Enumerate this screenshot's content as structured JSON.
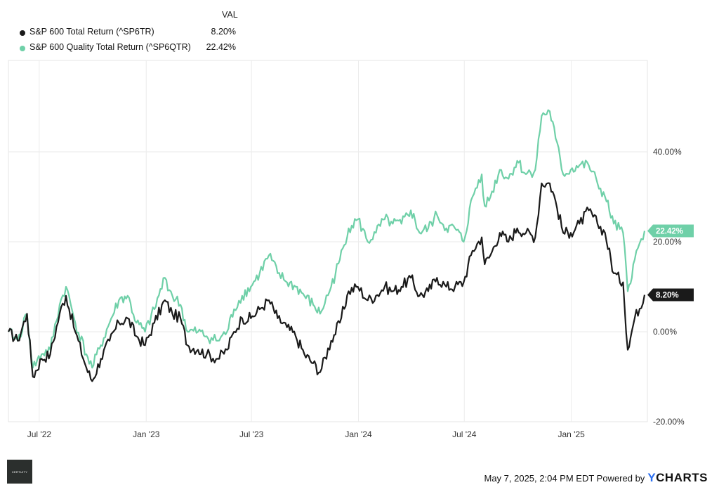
{
  "legend": {
    "header": "VAL",
    "items": [
      {
        "name": "S&P 600 Total Return (^SP6TR)",
        "value": "8.20%",
        "color": "#1a1a1a"
      },
      {
        "name": "S&P 600 Quality Total Return (^SP6QTR)",
        "value": "22.42%",
        "color": "#6fd0a8"
      }
    ]
  },
  "footer": {
    "timestamp": "May 7, 2025, 2:04 PM EDT Powered by",
    "brand_y": "Y",
    "brand_rest": "CHARTS"
  },
  "logo": {
    "text": "CERTUITY"
  },
  "chart_data": {
    "type": "line",
    "x_ticks": [
      "Jul '22",
      "Jan '23",
      "Jul '23",
      "Jan '24",
      "Jul '24",
      "Jan '25"
    ],
    "y_ticks": [
      "40.00%",
      "20.00%",
      "0.00%",
      "-20.00%"
    ],
    "ylim": [
      -20,
      60
    ],
    "xlim": [
      "2022-05-09",
      "2025-05-07"
    ],
    "grid": true,
    "end_labels": [
      "8.20%",
      "22.42%"
    ],
    "series": [
      {
        "name": "S&P 600 Total Return (^SP6TR)",
        "color": "#1a1a1a",
        "points": [
          [
            "2022-05-09",
            0
          ],
          [
            "2022-05-25",
            -2
          ],
          [
            "2022-06-10",
            4
          ],
          [
            "2022-06-20",
            -10
          ],
          [
            "2022-07-05",
            -6
          ],
          [
            "2022-07-20",
            -5
          ],
          [
            "2022-08-05",
            4
          ],
          [
            "2022-08-16",
            8
          ],
          [
            "2022-09-01",
            0
          ],
          [
            "2022-09-20",
            -8
          ],
          [
            "2022-09-30",
            -11
          ],
          [
            "2022-10-15",
            -6
          ],
          [
            "2022-10-30",
            -2
          ],
          [
            "2022-11-15",
            2
          ],
          [
            "2022-11-30",
            3
          ],
          [
            "2022-12-15",
            -1
          ],
          [
            "2022-12-30",
            -3
          ],
          [
            "2023-01-15",
            2
          ],
          [
            "2023-02-02",
            7
          ],
          [
            "2023-02-15",
            4
          ],
          [
            "2023-03-01",
            3
          ],
          [
            "2023-03-13",
            -3
          ],
          [
            "2023-03-31",
            -4
          ],
          [
            "2023-04-15",
            -5
          ],
          [
            "2023-05-04",
            -6
          ],
          [
            "2023-05-20",
            -4
          ],
          [
            "2023-06-01",
            0
          ],
          [
            "2023-06-15",
            3
          ],
          [
            "2023-06-30",
            3
          ],
          [
            "2023-07-15",
            5
          ],
          [
            "2023-07-31",
            7
          ],
          [
            "2023-08-15",
            3
          ],
          [
            "2023-08-31",
            1
          ],
          [
            "2023-09-15",
            -1
          ],
          [
            "2023-09-30",
            -5
          ],
          [
            "2023-10-15",
            -7
          ],
          [
            "2023-10-27",
            -9
          ],
          [
            "2023-11-15",
            -2
          ],
          [
            "2023-11-30",
            2
          ],
          [
            "2023-12-15",
            9
          ],
          [
            "2023-12-31",
            10
          ],
          [
            "2024-01-17",
            7
          ],
          [
            "2024-01-31",
            8
          ],
          [
            "2024-02-15",
            10
          ],
          [
            "2024-02-29",
            9
          ],
          [
            "2024-03-15",
            10
          ],
          [
            "2024-03-31",
            12
          ],
          [
            "2024-04-15",
            8
          ],
          [
            "2024-04-30",
            9
          ],
          [
            "2024-05-15",
            12
          ],
          [
            "2024-05-31",
            10
          ],
          [
            "2024-06-15",
            10
          ],
          [
            "2024-06-30",
            11
          ],
          [
            "2024-07-15",
            18
          ],
          [
            "2024-07-31",
            21
          ],
          [
            "2024-08-05",
            15
          ],
          [
            "2024-08-15",
            17
          ],
          [
            "2024-08-31",
            22
          ],
          [
            "2024-09-15",
            20
          ],
          [
            "2024-09-30",
            23
          ],
          [
            "2024-10-15",
            22
          ],
          [
            "2024-10-31",
            21
          ],
          [
            "2024-11-11",
            33
          ],
          [
            "2024-11-25",
            33
          ],
          [
            "2024-12-05",
            29
          ],
          [
            "2024-12-18",
            22
          ],
          [
            "2024-12-31",
            22
          ],
          [
            "2025-01-15",
            24
          ],
          [
            "2025-01-31",
            27
          ],
          [
            "2025-02-15",
            24
          ],
          [
            "2025-02-28",
            22
          ],
          [
            "2025-03-15",
            13
          ],
          [
            "2025-03-31",
            11
          ],
          [
            "2025-04-08",
            -4
          ],
          [
            "2025-04-20",
            3
          ],
          [
            "2025-05-07",
            8.2
          ]
        ]
      },
      {
        "name": "S&P 600 Quality Total Return (^SP6QTR)",
        "color": "#6fd0a8",
        "points": [
          [
            "2022-05-09",
            0
          ],
          [
            "2022-05-25",
            -2
          ],
          [
            "2022-06-10",
            4
          ],
          [
            "2022-06-20",
            -8
          ],
          [
            "2022-07-05",
            -5
          ],
          [
            "2022-07-20",
            -4
          ],
          [
            "2022-08-05",
            6
          ],
          [
            "2022-08-16",
            10
          ],
          [
            "2022-09-01",
            2
          ],
          [
            "2022-09-20",
            -5
          ],
          [
            "2022-09-30",
            -8
          ],
          [
            "2022-10-15",
            -3
          ],
          [
            "2022-10-30",
            2
          ],
          [
            "2022-11-15",
            7
          ],
          [
            "2022-11-30",
            8
          ],
          [
            "2022-12-15",
            2
          ],
          [
            "2022-12-30",
            0
          ],
          [
            "2023-01-15",
            5
          ],
          [
            "2023-02-02",
            12
          ],
          [
            "2023-02-15",
            8
          ],
          [
            "2023-03-01",
            6
          ],
          [
            "2023-03-13",
            0
          ],
          [
            "2023-03-31",
            0
          ],
          [
            "2023-04-15",
            -1
          ],
          [
            "2023-05-04",
            -2
          ],
          [
            "2023-05-20",
            0
          ],
          [
            "2023-06-01",
            5
          ],
          [
            "2023-06-15",
            8
          ],
          [
            "2023-06-30",
            10
          ],
          [
            "2023-07-15",
            13
          ],
          [
            "2023-07-31",
            17
          ],
          [
            "2023-08-15",
            13
          ],
          [
            "2023-08-31",
            11
          ],
          [
            "2023-09-15",
            10
          ],
          [
            "2023-09-30",
            8
          ],
          [
            "2023-10-15",
            6
          ],
          [
            "2023-10-27",
            4
          ],
          [
            "2023-11-15",
            10
          ],
          [
            "2023-11-30",
            16
          ],
          [
            "2023-12-15",
            23
          ],
          [
            "2023-12-31",
            25
          ],
          [
            "2024-01-17",
            20
          ],
          [
            "2024-01-31",
            22
          ],
          [
            "2024-02-15",
            25
          ],
          [
            "2024-02-29",
            24
          ],
          [
            "2024-03-15",
            24
          ],
          [
            "2024-03-31",
            27
          ],
          [
            "2024-04-15",
            22
          ],
          [
            "2024-04-30",
            23
          ],
          [
            "2024-05-15",
            26
          ],
          [
            "2024-05-31",
            23
          ],
          [
            "2024-06-15",
            23
          ],
          [
            "2024-06-30",
            20
          ],
          [
            "2024-07-15",
            30
          ],
          [
            "2024-07-31",
            35
          ],
          [
            "2024-08-05",
            28
          ],
          [
            "2024-08-15",
            30
          ],
          [
            "2024-08-31",
            36
          ],
          [
            "2024-09-15",
            34
          ],
          [
            "2024-09-30",
            38
          ],
          [
            "2024-10-15",
            35
          ],
          [
            "2024-10-31",
            36
          ],
          [
            "2024-11-11",
            48
          ],
          [
            "2024-11-25",
            49
          ],
          [
            "2024-12-05",
            43
          ],
          [
            "2024-12-18",
            35
          ],
          [
            "2024-12-31",
            36
          ],
          [
            "2025-01-15",
            37
          ],
          [
            "2025-01-31",
            37
          ],
          [
            "2025-02-15",
            33
          ],
          [
            "2025-02-28",
            30
          ],
          [
            "2025-03-15",
            24
          ],
          [
            "2025-03-31",
            22
          ],
          [
            "2025-04-08",
            9
          ],
          [
            "2025-04-20",
            16
          ],
          [
            "2025-05-07",
            22.42
          ]
        ]
      }
    ]
  }
}
